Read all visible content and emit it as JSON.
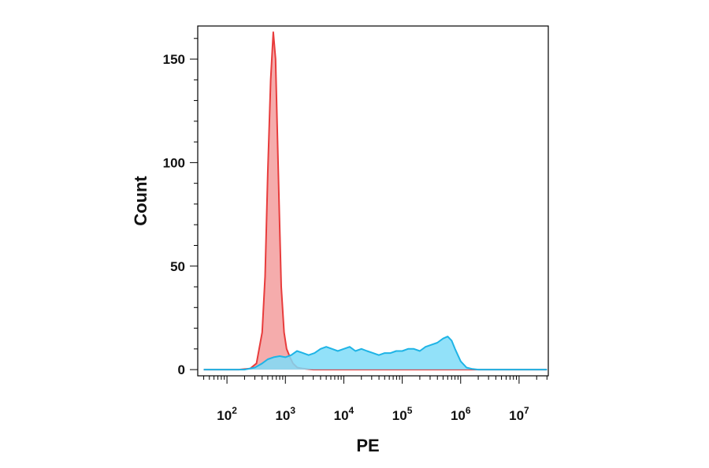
{
  "chart_data": {
    "type": "area",
    "xlabel": "PE",
    "ylabel": "Count",
    "x_scale": "log",
    "xlim": [
      31.6,
      31623000
    ],
    "ylim": [
      -3,
      166
    ],
    "grid": false,
    "legend": "none",
    "x_ticks": [
      {
        "value": 100,
        "base": "10",
        "exp": "2"
      },
      {
        "value": 1000,
        "base": "10",
        "exp": "3"
      },
      {
        "value": 10000,
        "base": "10",
        "exp": "4"
      },
      {
        "value": 100000,
        "base": "10",
        "exp": "5"
      },
      {
        "value": 1000000,
        "base": "10",
        "exp": "6"
      },
      {
        "value": 10000000,
        "base": "10",
        "exp": "7"
      }
    ],
    "y_ticks": [
      {
        "value": 0,
        "label": "0"
      },
      {
        "value": 50,
        "label": "50"
      },
      {
        "value": 100,
        "label": "100"
      },
      {
        "value": 150,
        "label": "150"
      }
    ],
    "series": [
      {
        "color": "#f08080",
        "stroke": "#e83c3c",
        "opacity": 0.65,
        "x": [
          40,
          160,
          250,
          320,
          400,
          450,
          500,
          560,
          620,
          680,
          720,
          780,
          850,
          950,
          1050,
          1200,
          1350,
          1600,
          2000,
          2500,
          3000,
          5000,
          10000,
          100000,
          1000000,
          30000000
        ],
        "y": [
          0,
          0,
          0.5,
          3,
          18,
          45,
          95,
          140,
          163,
          150,
          120,
          80,
          40,
          18,
          10,
          6,
          3,
          1,
          0.5,
          0.2,
          0,
          0,
          0,
          0,
          0,
          0
        ]
      },
      {
        "color": "#7fdcf8",
        "stroke": "#1fb4e6",
        "opacity": 0.85,
        "x": [
          40,
          200,
          300,
          400,
          500,
          630,
          800,
          1000,
          1260,
          1580,
          2000,
          2500,
          3160,
          4000,
          5000,
          6300,
          7900,
          10000,
          12600,
          15800,
          20000,
          25000,
          31600,
          39800,
          50000,
          63000,
          79000,
          100000,
          126000,
          158000,
          200000,
          251000,
          316000,
          398000,
          500000,
          600000,
          700000,
          800000,
          1000000,
          1260000,
          1580000,
          2000000,
          3000000,
          10000000,
          30000000
        ],
        "y": [
          0,
          0,
          1,
          3,
          5,
          6,
          6.5,
          6,
          7,
          9,
          8,
          7,
          8,
          10,
          11,
          10,
          9,
          10,
          11,
          9,
          10,
          9,
          8,
          7,
          8,
          8,
          9,
          9,
          10,
          10,
          9,
          11,
          12,
          13,
          15,
          16,
          14,
          10,
          4,
          1,
          0.3,
          0,
          0,
          0,
          0
        ]
      }
    ]
  }
}
